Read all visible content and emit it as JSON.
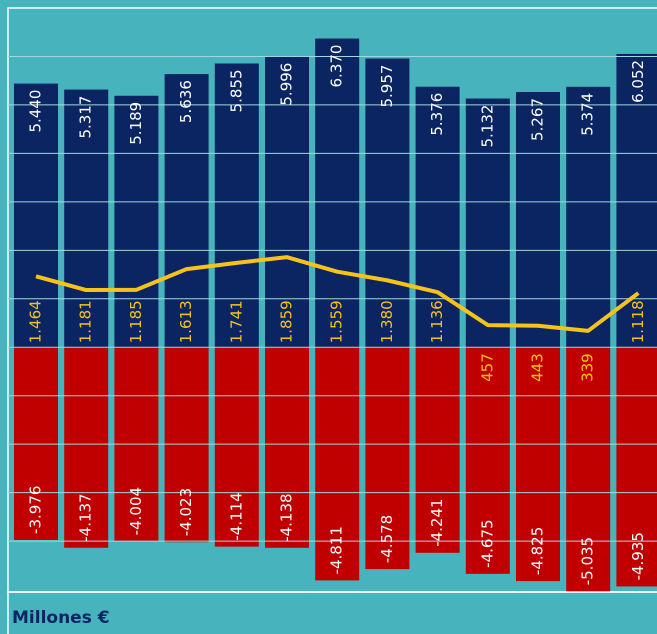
{
  "chart_data": {
    "type": "bar",
    "unit_label": "Millones €",
    "ylim": [
      -5050,
      7000
    ],
    "yticks": [
      -4000,
      -3000,
      -2000,
      -1000,
      0,
      1000,
      2000,
      3000,
      4000,
      5000,
      6000
    ],
    "grid": true,
    "series": [
      {
        "color": "#0b2462",
        "values": [
          5440,
          5317,
          5189,
          5636,
          5855,
          5996,
          6370,
          5957,
          5376,
          5132,
          5267,
          5374,
          6052
        ],
        "value_labels": [
          "5.440",
          "5.317",
          "5.189",
          "5.636",
          "5.855",
          "5.996",
          "6.370",
          "5.957",
          "5.376",
          "5.132",
          "5.267",
          "5.374",
          "6.052"
        ]
      },
      {
        "color": "#c00000",
        "values": [
          -3976,
          -4137,
          -4004,
          -4023,
          -4114,
          -4138,
          -4811,
          -4578,
          -4241,
          -4675,
          -4825,
          -5035,
          -4935
        ],
        "value_labels": [
          "-3.976",
          "-4.137",
          "-4.004",
          "-4.023",
          "-4.114",
          "-4.138",
          "-4.811",
          "-4.578",
          "-4.241",
          "-4.675",
          "-4.825",
          "-5.035",
          "-4.935"
        ]
      },
      {
        "color": "#f7c31a",
        "type": "line",
        "values": [
          1464,
          1181,
          1185,
          1613,
          1741,
          1859,
          1559,
          1380,
          1136,
          457,
          443,
          339,
          1118
        ],
        "value_labels": [
          "1.464",
          "1.181",
          "1.185",
          "1.613",
          "1.741",
          "1.859",
          "1.559",
          "1.380",
          "1.136",
          "457",
          "443",
          "339",
          "1.118"
        ]
      }
    ]
  }
}
